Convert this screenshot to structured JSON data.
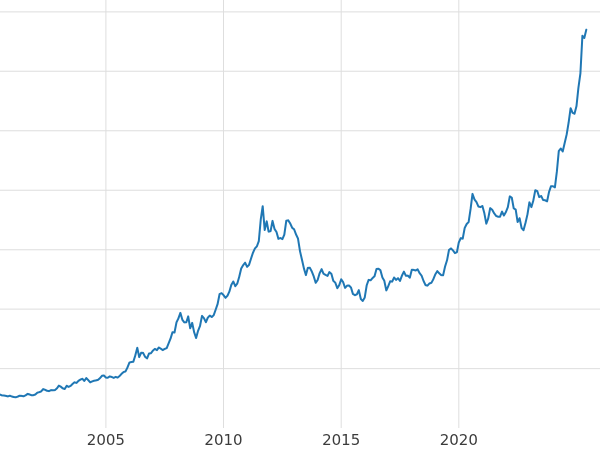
{
  "figure": {
    "background_color": "#ffffff",
    "tick_label_color": "#3b3b3b"
  },
  "chart_data": {
    "type": "line",
    "title": "",
    "xlabel": "",
    "ylabel": "",
    "legend": "none",
    "grid": "on",
    "line_color": "#1f77b4",
    "grid_color": "#dedede",
    "line_width": 2,
    "x_start": 2000.5,
    "x_step": 0.0833333,
    "xlim": [
      2000.5,
      2026.0
    ],
    "ylim": [
      0,
      3600
    ],
    "xticks": [
      2005,
      2010,
      2015,
      2020
    ],
    "xtick_labels": [
      "2005",
      "2010",
      "2015",
      "2020"
    ],
    "yticks": [
      500,
      1000,
      1500,
      2000,
      2500,
      3000,
      3500
    ],
    "series_name": "price",
    "values": [
      281,
      274,
      273,
      270,
      266,
      272,
      265,
      261,
      258,
      263,
      272,
      270,
      267,
      274,
      287,
      283,
      276,
      276,
      282,
      297,
      301,
      308,
      327,
      321,
      313,
      310,
      319,
      317,
      319,
      333,
      356,
      347,
      334,
      328,
      355,
      346,
      354,
      370,
      384,
      379,
      396,
      407,
      414,
      396,
      420,
      403,
      384,
      392,
      398,
      400,
      405,
      420,
      439,
      442,
      424,
      423,
      434,
      429,
      421,
      430,
      424,
      437,
      456,
      470,
      476,
      510,
      550,
      555,
      557,
      611,
      675,
      596,
      633,
      632,
      599,
      585,
      627,
      629,
      651,
      665,
      655,
      677,
      667,
      655,
      665,
      672,
      712,
      754,
      806,
      803,
      889,
      922,
      968,
      909,
      888,
      889,
      939,
      839,
      884,
      807,
      757,
      816,
      858,
      943,
      924,
      890,
      928,
      945,
      934,
      949,
      996,
      1043,
      1127,
      1134,
      1118,
      1095,
      1113,
      1148,
      1205,
      1232,
      1193,
      1215,
      1271,
      1342,
      1369,
      1390,
      1356,
      1372,
      1424,
      1473,
      1510,
      1528,
      1572,
      1757,
      1866,
      1665,
      1739,
      1652,
      1656,
      1742,
      1675,
      1649,
      1591,
      1598,
      1589,
      1626,
      1744,
      1747,
      1721,
      1684,
      1671,
      1627,
      1593,
      1487,
      1414,
      1343,
      1286,
      1347,
      1348,
      1316,
      1276,
      1221,
      1244,
      1301,
      1336,
      1298,
      1288,
      1279,
      1311,
      1296,
      1238,
      1222,
      1176,
      1201,
      1251,
      1227,
      1178,
      1198,
      1199,
      1181,
      1128,
      1117,
      1125,
      1159,
      1086,
      1068,
      1097,
      1200,
      1246,
      1242,
      1261,
      1276,
      1337,
      1340,
      1327,
      1266,
      1238,
      1157,
      1192,
      1234,
      1231,
      1266,
      1246,
      1260,
      1237,
      1283,
      1315,
      1280,
      1282,
      1264,
      1331,
      1330,
      1325,
      1335,
      1303,
      1281,
      1238,
      1202,
      1198,
      1215,
      1221,
      1251,
      1292,
      1320,
      1301,
      1286,
      1284,
      1359,
      1413,
      1498,
      1511,
      1495,
      1471,
      1479,
      1561,
      1597,
      1592,
      1683,
      1716,
      1732,
      1843,
      1969,
      1922,
      1900,
      1863,
      1858,
      1867,
      1808,
      1718,
      1762,
      1850,
      1835,
      1807,
      1784,
      1777,
      1777,
      1820,
      1787,
      1817,
      1856,
      1948,
      1937,
      1848,
      1837,
      1733,
      1765,
      1681,
      1664,
      1725,
      1798,
      1898,
      1858,
      1913,
      2000,
      1992,
      1942,
      1951,
      1918,
      1915,
      1907,
      1984,
      2034,
      2034,
      2024,
      2160,
      2330,
      2351,
      2326,
      2398,
      2470,
      2568,
      2690,
      2652,
      2643,
      2708,
      2861,
      2983,
      3300,
      3280,
      3350
    ]
  }
}
